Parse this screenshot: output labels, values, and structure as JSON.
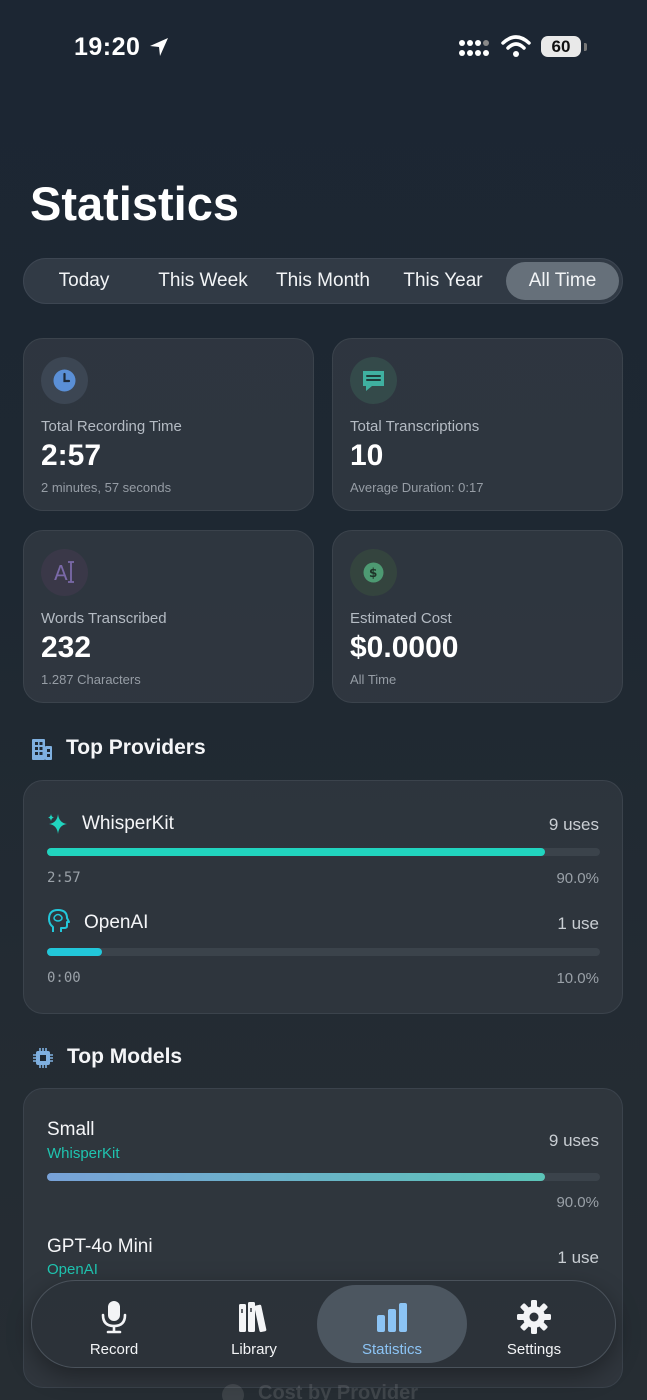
{
  "status_bar": {
    "time": "19:20",
    "battery": "60"
  },
  "title": "Statistics",
  "periods": [
    "Today",
    "This Week",
    "This Month",
    "This Year",
    "All Time"
  ],
  "active_period": "All Time",
  "stats": [
    {
      "icon": "clock-icon",
      "label": "Total Recording Time",
      "value": "2:57",
      "sub": "2 minutes, 57 seconds",
      "color": "#5a8fd6"
    },
    {
      "icon": "chat-bubble-icon",
      "label": "Total Transcriptions",
      "value": "10",
      "sub": "Average Duration: 0:17",
      "color": "#3fb0a0"
    },
    {
      "icon": "text-cursor-icon",
      "label": "Words Transcribed",
      "value": "232",
      "sub": "1.287 Characters",
      "color": "#7a69a8"
    },
    {
      "icon": "dollar-icon",
      "label": "Estimated Cost",
      "value": "$0.0000",
      "sub": "All Time",
      "color": "#4d9a72"
    }
  ],
  "top_providers": {
    "title": "Top Providers",
    "items": [
      {
        "icon": "sparkles-icon",
        "name": "WhisperKit",
        "uses": "9 uses",
        "time": "2:57",
        "percent": "90.0%",
        "fraction": 0.9,
        "color": "#21d4bf"
      },
      {
        "icon": "brain-head-icon",
        "name": "OpenAI",
        "uses": "1 use",
        "time": "0:00",
        "percent": "10.0%",
        "fraction": 0.1,
        "color": "#22c7da"
      }
    ]
  },
  "top_models": {
    "title": "Top Models",
    "items": [
      {
        "name": "Small",
        "provider": "WhisperKit",
        "uses": "9 uses",
        "percent": "90.0%",
        "fraction": 0.9
      },
      {
        "name": "GPT-4o Mini",
        "provider": "OpenAI",
        "uses": "1 use"
      }
    ]
  },
  "tabs": [
    {
      "label": "Record",
      "icon": "microphone-icon"
    },
    {
      "label": "Library",
      "icon": "books-icon"
    },
    {
      "label": "Statistics",
      "icon": "bar-chart-icon",
      "active": true
    },
    {
      "label": "Settings",
      "icon": "gear-icon"
    }
  ],
  "peek_section": "Cost by Provider",
  "colors": {
    "accent_teal": "#21d4bf",
    "tab_active_blue": "#8cc4f5",
    "model_provider_text": "#1fc4b0"
  }
}
